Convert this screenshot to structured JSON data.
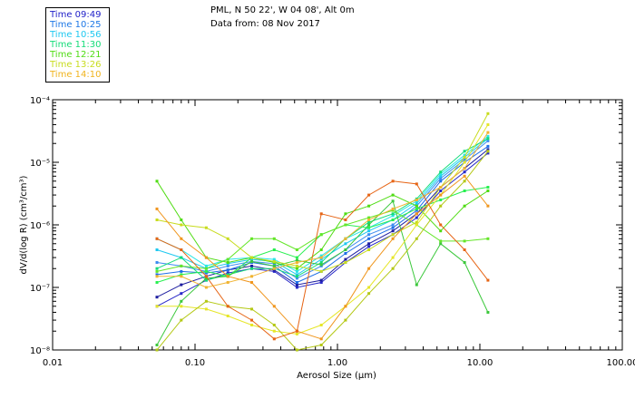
{
  "header": {
    "location": "PML, N 50 22', W 04 08', Alt 0m",
    "date_line": "Data from: 08 Nov 2017"
  },
  "legend": [
    {
      "label": "Time 09:49",
      "color": "#1e1ec8"
    },
    {
      "label": "Time 10:25",
      "color": "#1e78e6"
    },
    {
      "label": "Time 10:56",
      "color": "#1ec8f0"
    },
    {
      "label": "Time 11:30",
      "color": "#14dc78"
    },
    {
      "label": "Time 12:21",
      "color": "#50dc14"
    },
    {
      "label": "Time 13:26",
      "color": "#c8dc1e"
    },
    {
      "label": "Time 14:10",
      "color": "#f0b41e"
    }
  ],
  "chart_data": {
    "type": "line",
    "scale": "log-log",
    "title": "",
    "xlabel": "Aerosol Size (μm)",
    "ylabel": "dV/d(log R) (cm³/cm³)",
    "xlim": [
      0.01,
      100
    ],
    "ylim": [
      1e-08,
      0.0001
    ],
    "xticklabels": [
      "0.01",
      "0.10",
      "1.00",
      "10.00",
      "100.00"
    ],
    "yticklabels": [
      "10⁻⁸",
      "10⁻⁷",
      "10⁻⁶",
      "10⁻⁵",
      "10⁻⁴"
    ],
    "x": [
      0.054,
      0.08,
      0.12,
      0.17,
      0.25,
      0.36,
      0.52,
      0.77,
      1.14,
      1.66,
      2.45,
      3.6,
      5.3,
      7.8,
      11.4
    ],
    "series": [
      {
        "name": "Time 09:49",
        "color": "#2828c8",
        "values": [
          5e-08,
          8e-08,
          1.3e-07,
          1.7e-07,
          2e-07,
          1.8e-07,
          1e-07,
          1.2e-07,
          2.5e-07,
          4.5e-07,
          7e-07,
          1.3e-06,
          3.5e-06,
          7e-06,
          1.4e-05
        ]
      },
      {
        "name": "Time 09:49",
        "color": "#1e1ea0",
        "values": [
          7e-08,
          1.1e-07,
          1.5e-07,
          1.9e-07,
          2.2e-07,
          1.9e-07,
          1.1e-07,
          1.3e-07,
          2.8e-07,
          5e-07,
          8e-07,
          1.5e-06,
          4e-06,
          8e-06,
          1.6e-05
        ]
      },
      {
        "name": "Time 10:25",
        "color": "#1e6ee6",
        "values": [
          1.6e-07,
          1.8e-07,
          1.7e-07,
          1.9e-07,
          2.5e-07,
          2.2e-07,
          1.2e-07,
          1.8e-07,
          3.5e-07,
          6e-07,
          9e-07,
          1.7e-06,
          5e-06,
          1e-05,
          1.8e-05
        ]
      },
      {
        "name": "Time 10:25",
        "color": "#3c8cf0",
        "values": [
          2.5e-07,
          2.2e-07,
          1.8e-07,
          2.2e-07,
          2.6e-07,
          2.4e-07,
          1.4e-07,
          2.2e-07,
          4e-07,
          7e-07,
          1e-06,
          2e-06,
          5.5e-06,
          1.1e-05,
          2.2e-05
        ]
      },
      {
        "name": "Time 10:56",
        "color": "#1ec8f0",
        "values": [
          4e-07,
          3e-07,
          2e-07,
          2.4e-07,
          2.8e-07,
          2.6e-07,
          1.6e-07,
          2.8e-07,
          5e-07,
          8e-07,
          1.2e-06,
          2.2e-06,
          6e-06,
          1.2e-05,
          2.4e-05
        ]
      },
      {
        "name": "Time 10:56",
        "color": "#28e6e6",
        "values": [
          6e-07,
          4e-07,
          2.2e-07,
          2.8e-07,
          3e-07,
          2.8e-07,
          1.8e-07,
          3.2e-07,
          6e-07,
          9e-07,
          1.4e-06,
          2.4e-06,
          6.5e-06,
          1.3e-05,
          2.6e-05
        ]
      },
      {
        "name": "Time 11:30",
        "color": "#14dc78",
        "values": [
          2e-07,
          3e-07,
          1.3e-07,
          1.6e-07,
          2e-07,
          2e-07,
          1.5e-07,
          2.5e-07,
          6e-07,
          1.1e-06,
          1.5e-06,
          2.6e-06,
          7e-06,
          1.5e-05,
          2.4e-05
        ]
      },
      {
        "name": "Time 11:30",
        "color": "#28f050",
        "values": [
          1.2e-07,
          1.6e-07,
          1.8e-07,
          1.5e-07,
          3e-07,
          4e-07,
          3e-07,
          7e-07,
          1e-06,
          9e-07,
          1.2e-06,
          1.8e-06,
          2.5e-06,
          3.5e-06,
          4e-06
        ]
      },
      {
        "name": "Time 12:21",
        "color": "#50dc14",
        "values": [
          5e-06,
          1.2e-06,
          3e-07,
          2.5e-07,
          3e-07,
          2.5e-07,
          2e-07,
          4e-07,
          1.5e-06,
          2e-06,
          3e-06,
          2e-06,
          8e-07,
          2e-06,
          3.5e-06
        ]
      },
      {
        "name": "Time 12:21",
        "color": "#3cc83c",
        "values": [
          1.2e-08,
          6e-08,
          1.4e-07,
          1.5e-07,
          2.6e-07,
          2.2e-07,
          2.7e-07,
          2.3e-07,
          4e-07,
          1e-06,
          2.4e-06,
          1.1e-07,
          5e-07,
          2.5e-07,
          4e-08
        ]
      },
      {
        "name": "Time 12:21",
        "color": "#64e628",
        "values": [
          1.8e-07,
          2.2e-07,
          2e-07,
          2.8e-07,
          6e-07,
          6e-07,
          4e-07,
          7e-07,
          1e-06,
          1.3e-06,
          1.7e-06,
          1e-06,
          5.5e-07,
          5.5e-07,
          6e-07
        ]
      },
      {
        "name": "Time 13:26",
        "color": "#c8dc1e",
        "values": [
          1.2e-06,
          1e-06,
          9e-07,
          6e-07,
          3e-07,
          2.6e-07,
          2.2e-07,
          1.8e-07,
          2.5e-07,
          4e-07,
          7e-07,
          1.1e-06,
          4e-06,
          1.2e-05,
          6e-05
        ]
      },
      {
        "name": "Time 13:26",
        "color": "#e6e628",
        "values": [
          5e-08,
          5e-08,
          4.5e-08,
          3.5e-08,
          2.5e-08,
          2e-08,
          1.8e-08,
          2.5e-08,
          5e-08,
          1e-07,
          3e-07,
          1e-06,
          3e-06,
          1e-05,
          4e-05
        ]
      },
      {
        "name": "Time 13:26",
        "color": "#b4c814",
        "values": [
          1e-08,
          3e-08,
          6e-08,
          5e-08,
          4.5e-08,
          2.5e-08,
          1e-08,
          1.2e-08,
          3e-08,
          8e-08,
          2e-07,
          6e-07,
          2e-06,
          5e-06,
          1.5e-05
        ]
      },
      {
        "name": "Time 14:10",
        "color": "#f0961e",
        "values": [
          1.8e-06,
          6e-07,
          3e-07,
          1.5e-07,
          1.2e-07,
          5e-08,
          2e-08,
          1.5e-08,
          5e-08,
          2e-07,
          6e-07,
          1.5e-06,
          3e-06,
          6e-06,
          2e-06
        ]
      },
      {
        "name": "Time 14:10",
        "color": "#e66414",
        "values": [
          6e-07,
          4e-07,
          1.5e-07,
          5e-08,
          3e-08,
          1.5e-08,
          2e-08,
          1.5e-06,
          1.2e-06,
          3e-06,
          5e-06,
          4.5e-06,
          1e-06,
          4e-07,
          1.3e-07
        ]
      },
      {
        "name": "Time 14:10",
        "color": "#f0b432",
        "values": [
          1.5e-07,
          1.5e-07,
          1e-07,
          1.2e-07,
          1.5e-07,
          2e-07,
          2.5e-07,
          3e-07,
          6e-07,
          1.2e-06,
          1.8e-06,
          2.5e-06,
          4e-06,
          8e-06,
          3e-05
        ]
      }
    ]
  }
}
